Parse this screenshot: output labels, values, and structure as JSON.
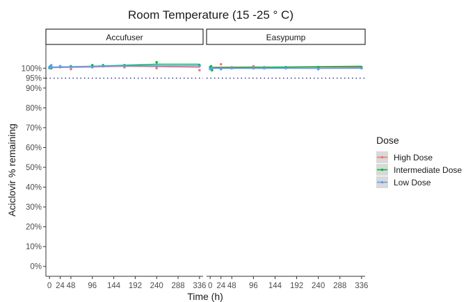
{
  "chart_data": {
    "type": "line",
    "title": "Room Temperature (15 -25 ° C)",
    "xlabel": "Time (h)",
    "ylabel": "Aciclovir % remaining",
    "xlim": [
      -8,
      344
    ],
    "ylim": [
      -5,
      112
    ],
    "x_ticks": [
      0,
      24,
      48,
      96,
      144,
      192,
      240,
      288,
      336
    ],
    "y_ticks": [
      {
        "value": 0,
        "label": "0%"
      },
      {
        "value": 10,
        "label": "10%"
      },
      {
        "value": 20,
        "label": "20%"
      },
      {
        "value": 30,
        "label": "30%"
      },
      {
        "value": 40,
        "label": "40%"
      },
      {
        "value": 50,
        "label": "50%"
      },
      {
        "value": 60,
        "label": "60%"
      },
      {
        "value": 70,
        "label": "70%"
      },
      {
        "value": 80,
        "label": "80%"
      },
      {
        "value": 90,
        "label": "90%"
      },
      {
        "value": 95,
        "label": "95%"
      },
      {
        "value": 100,
        "label": "100%"
      }
    ],
    "reference_line": {
      "y": 95,
      "style": "dotted",
      "color": "#1a1a9a"
    },
    "grid": false,
    "legend": {
      "title": "Dose",
      "placement": "right",
      "entries": [
        {
          "name": "High Dose",
          "color": "#F8766D"
        },
        {
          "name": "Intermediate Dose",
          "color": "#00BA38"
        },
        {
          "name": "Low Dose",
          "color": "#619CFF"
        }
      ]
    },
    "panels": [
      {
        "label": "Accufuser",
        "series": [
          {
            "name": "High Dose",
            "color": "#F8766D",
            "points": [
              [
                0,
                100
              ],
              [
                2,
                100.5
              ],
              [
                4,
                101
              ],
              [
                24,
                100.5
              ],
              [
                48,
                99.5
              ],
              [
                96,
                100.5
              ],
              [
                120,
                101
              ],
              [
                168,
                100.5
              ],
              [
                240,
                100
              ],
              [
                336,
                99
              ]
            ],
            "line": [
              [
                0,
                100.3
              ],
              [
                96,
                100.6
              ],
              [
                168,
                101
              ],
              [
                240,
                100.8
              ],
              [
                336,
                100.5
              ]
            ]
          },
          {
            "name": "Intermediate Dose",
            "color": "#00BA38",
            "points": [
              [
                0,
                100.5
              ],
              [
                2,
                101
              ],
              [
                4,
                100
              ],
              [
                24,
                101
              ],
              [
                48,
                101
              ],
              [
                96,
                101.5
              ],
              [
                120,
                101.5
              ],
              [
                168,
                101.5
              ],
              [
                240,
                103
              ],
              [
                336,
                101.5
              ]
            ],
            "line": [
              [
                0,
                100.5
              ],
              [
                96,
                101
              ],
              [
                168,
                101.5
              ],
              [
                240,
                102
              ],
              [
                336,
                102
              ]
            ]
          },
          {
            "name": "Low Dose",
            "color": "#619CFF",
            "points": [
              [
                0,
                100
              ],
              [
                2,
                100.5
              ],
              [
                4,
                101.5
              ],
              [
                24,
                101
              ],
              [
                48,
                100.5
              ],
              [
                96,
                100.5
              ],
              [
                120,
                101
              ],
              [
                168,
                101
              ],
              [
                240,
                101
              ],
              [
                336,
                101
              ]
            ],
            "line": [
              [
                0,
                100.4
              ],
              [
                96,
                100.9
              ],
              [
                168,
                101.2
              ],
              [
                240,
                101.2
              ],
              [
                336,
                101.2
              ]
            ]
          }
        ]
      },
      {
        "label": "Easypump",
        "series": [
          {
            "name": "High Dose",
            "color": "#F8766D",
            "points": [
              [
                0,
                100
              ],
              [
                2,
                100.5
              ],
              [
                4,
                99.5
              ],
              [
                24,
                102
              ],
              [
                48,
                100.5
              ],
              [
                96,
                101
              ],
              [
                120,
                100.5
              ],
              [
                168,
                100
              ],
              [
                240,
                100.5
              ],
              [
                336,
                100
              ]
            ],
            "line": [
              [
                0,
                100.5
              ],
              [
                96,
                100.6
              ],
              [
                168,
                100.5
              ],
              [
                240,
                100.5
              ],
              [
                336,
                100.5
              ]
            ]
          },
          {
            "name": "Intermediate Dose",
            "color": "#00BA38",
            "points": [
              [
                0,
                100.5
              ],
              [
                2,
                101
              ],
              [
                4,
                99
              ],
              [
                24,
                100
              ],
              [
                48,
                100
              ],
              [
                96,
                100
              ],
              [
                120,
                100
              ],
              [
                168,
                100.5
              ],
              [
                240,
                100.5
              ],
              [
                336,
                100.5
              ]
            ],
            "line": [
              [
                0,
                100.2
              ],
              [
                96,
                100.4
              ],
              [
                168,
                100.6
              ],
              [
                240,
                100.8
              ],
              [
                336,
                101
              ]
            ]
          },
          {
            "name": "Low Dose",
            "color": "#619CFF",
            "points": [
              [
                0,
                99.5
              ],
              [
                2,
                100
              ],
              [
                4,
                100
              ],
              [
                24,
                99.5
              ],
              [
                48,
                100
              ],
              [
                96,
                100
              ],
              [
                120,
                100
              ],
              [
                168,
                100
              ],
              [
                240,
                99.5
              ],
              [
                336,
                100
              ]
            ],
            "line": [
              [
                0,
                99.9
              ],
              [
                96,
                99.9
              ],
              [
                168,
                100
              ],
              [
                240,
                99.9
              ],
              [
                336,
                100
              ]
            ]
          }
        ]
      }
    ]
  }
}
